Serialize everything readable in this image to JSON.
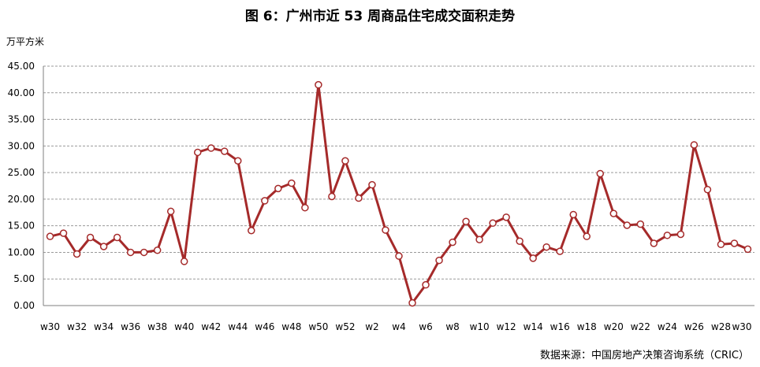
{
  "title": "图 6：广州市近 53 周商品住宅成交面积走势",
  "unit": "万平方米",
  "source": "数据来源：中国房地产决策咨询系统（CRIC）",
  "colors": {
    "line": "#A52A2A",
    "grid": "#9a9a9a",
    "axis": "#7f7f7f"
  },
  "chart_data": {
    "type": "line",
    "ylabel": "万平方米",
    "ylim": [
      0,
      45
    ],
    "ytick_labels": [
      "0.00",
      "5.00",
      "10.00",
      "15.00",
      "20.00",
      "25.00",
      "30.00",
      "35.00",
      "40.00",
      "45.00"
    ],
    "y_gridlines": true,
    "x_tick_labels": [
      "w30",
      "w32",
      "w34",
      "w36",
      "w38",
      "w40",
      "w42",
      "w44",
      "w46",
      "w48",
      "w50",
      "w52",
      "w2",
      "w4",
      "w6",
      "w8",
      "w10",
      "w12",
      "w14",
      "w16",
      "w18",
      "w20",
      "w22",
      "w24",
      "w26",
      "w28",
      "w30"
    ],
    "values": [
      13.0,
      13.6,
      9.7,
      12.8,
      11.1,
      12.8,
      10.0,
      10.0,
      10.4,
      17.7,
      8.3,
      28.8,
      29.6,
      29.0,
      27.2,
      14.1,
      19.7,
      22.0,
      23.0,
      18.4,
      41.5,
      20.5,
      27.2,
      20.2,
      22.7,
      14.2,
      9.3,
      0.5,
      3.9,
      8.5,
      11.9,
      15.8,
      12.4,
      15.5,
      16.6,
      12.1,
      8.9,
      11.0,
      10.2,
      17.1,
      13.0,
      24.8,
      17.3,
      15.1,
      15.3,
      11.7,
      13.2,
      13.4,
      30.2,
      21.8,
      11.5,
      11.7,
      10.6
    ]
  }
}
